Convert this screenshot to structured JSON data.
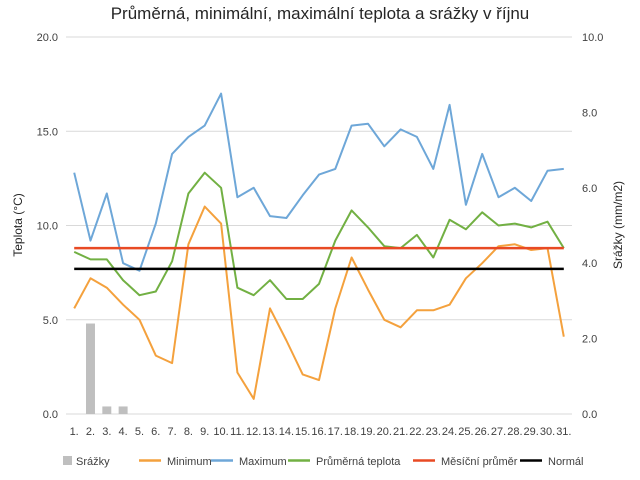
{
  "chart_data": {
    "type": "line",
    "title": "Průměrná, minimální, maximální teplota a srážky v říjnu",
    "ylabel": "Teplota (°C)",
    "y2label": "Srážky (mm/m2)",
    "ylim": [
      0,
      20
    ],
    "y2lim": [
      0,
      10
    ],
    "yticks": [
      "0.0",
      "5.0",
      "10.0",
      "15.0",
      "20.0"
    ],
    "y2ticks": [
      "0.0",
      "2.0",
      "4.0",
      "6.0",
      "8.0",
      "10.0"
    ],
    "categories": [
      "1.",
      "2.",
      "3.",
      "4.",
      "5.",
      "6.",
      "7.",
      "8.",
      "9.",
      "10.",
      "11.",
      "12.",
      "13.",
      "14.",
      "15.",
      "16.",
      "17.",
      "18.",
      "19.",
      "20.",
      "21.",
      "22.",
      "23.",
      "24.",
      "25.",
      "26.",
      "27.",
      "28.",
      "29.",
      "30.",
      "31."
    ],
    "grid": true,
    "legend_position": "bottom",
    "bar_series": {
      "name": "Srážky",
      "axis": "y2",
      "color": "#bfbfbf",
      "values": [
        0,
        2.4,
        0.2,
        0.2,
        0,
        0,
        0,
        0,
        0,
        0,
        0,
        0,
        0,
        0,
        0,
        0,
        0,
        0,
        0,
        0,
        0,
        0,
        0,
        0,
        0,
        0,
        0,
        0,
        0,
        0,
        0
      ]
    },
    "series": [
      {
        "name": "Minimum",
        "color": "#f4a13d",
        "values": [
          5.6,
          7.2,
          6.7,
          5.8,
          5.0,
          3.1,
          2.7,
          9.0,
          11.0,
          10.1,
          2.2,
          0.8,
          5.6,
          3.9,
          2.1,
          1.8,
          5.6,
          8.3,
          6.6,
          5.0,
          4.6,
          5.5,
          5.5,
          5.8,
          7.2,
          8.0,
          8.9,
          9.0,
          8.7,
          8.8,
          4.1
        ]
      },
      {
        "name": "Maximum",
        "color": "#6ea7d8",
        "values": [
          12.8,
          9.2,
          11.7,
          8.0,
          7.6,
          10.1,
          13.8,
          14.7,
          15.3,
          17.0,
          11.5,
          12.0,
          10.5,
          10.4,
          11.6,
          12.7,
          13.0,
          15.3,
          15.4,
          14.2,
          15.1,
          14.7,
          13.0,
          16.4,
          11.1,
          13.8,
          11.5,
          12.0,
          11.3,
          12.9,
          13.0
        ]
      },
      {
        "name": "Průměrná teplota",
        "color": "#72b043",
        "values": [
          8.6,
          8.2,
          8.2,
          7.1,
          6.3,
          6.5,
          8.1,
          11.7,
          12.8,
          12.0,
          6.7,
          6.3,
          7.1,
          6.1,
          6.1,
          6.9,
          9.2,
          10.8,
          9.9,
          8.9,
          8.8,
          9.5,
          8.3,
          10.3,
          9.8,
          10.7,
          10.0,
          10.1,
          9.9,
          10.2,
          8.8
        ]
      },
      {
        "name": "Měsíční průměr",
        "color": "#e84a24",
        "values": [
          8.8,
          8.8,
          8.8,
          8.8,
          8.8,
          8.8,
          8.8,
          8.8,
          8.8,
          8.8,
          8.8,
          8.8,
          8.8,
          8.8,
          8.8,
          8.8,
          8.8,
          8.8,
          8.8,
          8.8,
          8.8,
          8.8,
          8.8,
          8.8,
          8.8,
          8.8,
          8.8,
          8.8,
          8.8,
          8.8,
          8.8
        ]
      },
      {
        "name": "Normál",
        "color": "#000000",
        "values": [
          7.7,
          7.7,
          7.7,
          7.7,
          7.7,
          7.7,
          7.7,
          7.7,
          7.7,
          7.7,
          7.7,
          7.7,
          7.7,
          7.7,
          7.7,
          7.7,
          7.7,
          7.7,
          7.7,
          7.7,
          7.7,
          7.7,
          7.7,
          7.7,
          7.7,
          7.7,
          7.7,
          7.7,
          7.7,
          7.7,
          7.7
        ]
      }
    ],
    "gridline_color": "#d9d9d9"
  }
}
